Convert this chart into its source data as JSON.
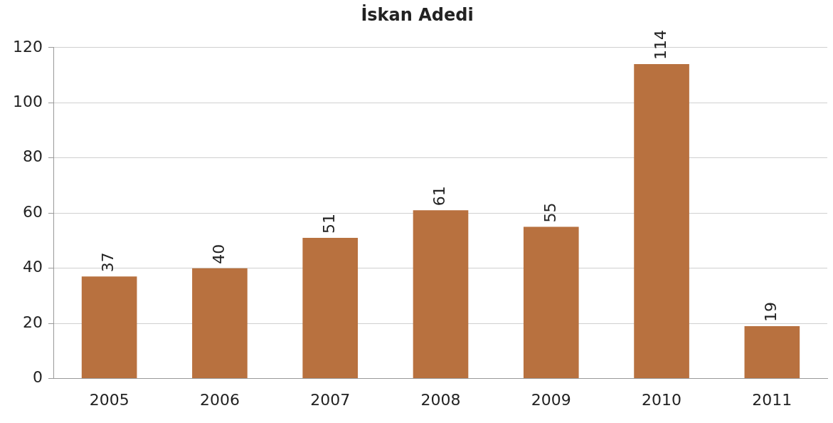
{
  "chart_data": {
    "type": "bar",
    "title": "İskan Adedi",
    "categories": [
      "2005",
      "2006",
      "2007",
      "2008",
      "2009",
      "2010",
      "2011"
    ],
    "values": [
      37,
      40,
      51,
      61,
      55,
      114,
      19
    ],
    "color": "#b8713f",
    "ylim": [
      0,
      120
    ],
    "yticks": [
      0,
      20,
      40,
      60,
      80,
      100,
      120
    ],
    "grid": "y",
    "data_labels": true
  }
}
